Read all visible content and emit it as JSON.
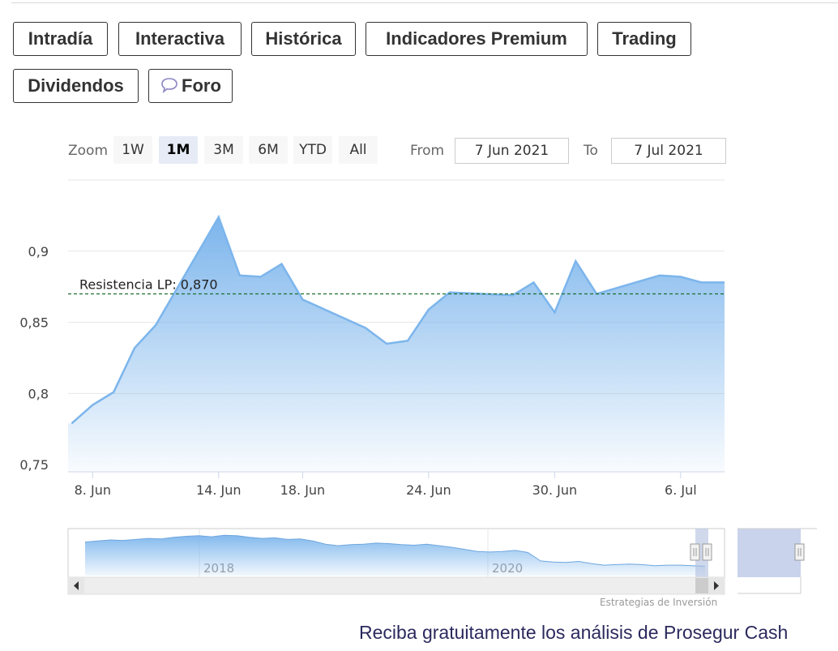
{
  "tabs": [
    {
      "label": "Intradía",
      "style": "violet"
    },
    {
      "label": "Interactiva",
      "style": "violet"
    },
    {
      "label": "Histórica",
      "style": "violet active"
    },
    {
      "label": "Indicadores Premium",
      "style": "red"
    },
    {
      "label": "Trading",
      "style": "red"
    },
    {
      "label": "Dividendos",
      "style": "violet"
    },
    {
      "label": "Foro",
      "style": "violet",
      "icon": "speech-bubble-icon"
    }
  ],
  "range_selector": {
    "zoom_label": "Zoom",
    "buttons": [
      "1W",
      "1M",
      "3M",
      "6M",
      "YTD",
      "All"
    ],
    "selected": "1M",
    "from_label": "From",
    "from_value": "7 Jun 2021",
    "to_label": "To",
    "to_value": "7 Jul 2021"
  },
  "colors": {
    "accent_violet": "#8c86c4",
    "accent_red": "#e49a98",
    "series_line": "#7cb5ec",
    "resistance_line": "#1b6e2d",
    "promo_text": "#2b2a5e"
  },
  "chart_data": {
    "type": "area",
    "x": [
      "2021-06-07",
      "2021-06-08",
      "2021-06-09",
      "2021-06-10",
      "2021-06-11",
      "2021-06-14",
      "2021-06-15",
      "2021-06-16",
      "2021-06-17",
      "2021-06-18",
      "2021-06-21",
      "2021-06-22",
      "2021-06-23",
      "2021-06-24",
      "2021-06-25",
      "2021-06-28",
      "2021-06-29",
      "2021-06-30",
      "2021-07-01",
      "2021-07-02",
      "2021-07-05",
      "2021-07-06",
      "2021-07-07",
      "2021-07-08"
    ],
    "values": [
      0.779,
      0.792,
      0.801,
      0.832,
      0.848,
      0.924,
      0.883,
      0.882,
      0.891,
      0.866,
      0.846,
      0.835,
      0.837,
      0.859,
      0.871,
      0.869,
      0.878,
      0.857,
      0.893,
      0.87,
      0.883,
      0.882,
      0.878,
      0.878
    ],
    "x_tick_labels": [
      "8. Jun",
      "14. Jun",
      "18. Jun",
      "24. Jun",
      "30. Jun",
      "6. Jul"
    ],
    "x_tick_dates": [
      "2021-06-08",
      "2021-06-14",
      "2021-06-18",
      "2021-06-24",
      "2021-06-30",
      "2021-07-06"
    ],
    "y_tick_labels": [
      "0,75",
      "0,8",
      "0,85",
      "0,9"
    ],
    "y_ticks": [
      0.75,
      0.8,
      0.85,
      0.9
    ],
    "ylim": [
      0.745,
      0.95
    ],
    "grid": true,
    "plot_line": {
      "label": "Resistencia LP: 0,870",
      "value": 0.87
    },
    "navigator": {
      "year_labels": [
        "2018",
        "2020"
      ],
      "values": [
        1.34,
        1.36,
        1.38,
        1.37,
        1.39,
        1.41,
        1.4,
        1.43,
        1.45,
        1.46,
        1.44,
        1.47,
        1.46,
        1.43,
        1.41,
        1.42,
        1.39,
        1.4,
        1.36,
        1.3,
        1.27,
        1.29,
        1.3,
        1.32,
        1.31,
        1.29,
        1.28,
        1.3,
        1.27,
        1.24,
        1.2,
        1.16,
        1.15,
        1.16,
        1.18,
        1.14,
        0.98,
        0.96,
        0.95,
        0.97,
        0.93,
        0.9,
        0.91,
        0.92,
        0.91,
        0.89,
        0.9,
        0.9,
        0.89,
        0.88
      ],
      "credits": "Estrategias de Inversión"
    }
  },
  "promo_text": "Reciba gratuitamente los análisis de Prosegur Cash"
}
